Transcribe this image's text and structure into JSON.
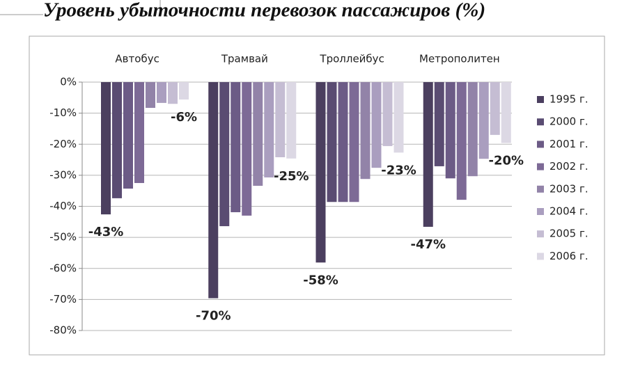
{
  "chart_data": {
    "type": "bar",
    "title": "Уровень убыточности перевозок пассажиров (%)",
    "categories": [
      "Автобус",
      "Трамвай",
      "Троллейбус",
      "Метрополитен"
    ],
    "series": [
      {
        "name": "1995 г.",
        "color": "#4b3f5f",
        "values": [
          -42.6,
          -69.6,
          -58.1,
          -46.6
        ],
        "value_labels": [
          "-43%",
          "-70%",
          "-58%",
          "-47%"
        ],
        "label_color": "#e0202e"
      },
      {
        "name": "2000 г.",
        "color": "#5a4c72",
        "values": [
          -37.4,
          -46.4,
          -38.6,
          -27.1
        ]
      },
      {
        "name": "2001 г.",
        "color": "#6c5b86",
        "values": [
          -34.3,
          -41.9,
          -38.6,
          -31.0
        ]
      },
      {
        "name": "2002 г.",
        "color": "#7d6a96",
        "values": [
          -32.5,
          -43.0,
          -38.6,
          -37.9
        ]
      },
      {
        "name": "2003 г.",
        "color": "#9283a8",
        "values": [
          -8.3,
          -33.4,
          -31.2,
          -30.3
        ]
      },
      {
        "name": "2004 г.",
        "color": "#aa9ebf",
        "values": [
          -6.7,
          -30.7,
          -27.6,
          -24.7
        ]
      },
      {
        "name": "2005 г.",
        "color": "#c5bdd3",
        "values": [
          -7.0,
          -24.2,
          -20.6,
          -17.0
        ]
      },
      {
        "name": "2006 г.",
        "color": "#dcd8e4",
        "values": [
          -5.6,
          -24.6,
          -22.7,
          -19.6
        ],
        "value_labels": [
          "-6%",
          "-25%",
          "-23%",
          "-20%"
        ],
        "label_color": "#2f5069"
      }
    ],
    "ylim": [
      -80,
      0
    ],
    "yticks": [
      {
        "value": 0,
        "label": "0%"
      },
      {
        "value": -10,
        "label": "-10%"
      },
      {
        "value": -20,
        "label": "-20%"
      },
      {
        "value": -30,
        "label": "-30%"
      },
      {
        "value": -40,
        "label": "-40%"
      },
      {
        "value": -50,
        "label": "-50%"
      },
      {
        "value": -60,
        "label": "-60%"
      },
      {
        "value": -70,
        "label": "-70%"
      },
      {
        "value": -80,
        "label": "-80%"
      }
    ],
    "grid": true,
    "legend": "right"
  }
}
